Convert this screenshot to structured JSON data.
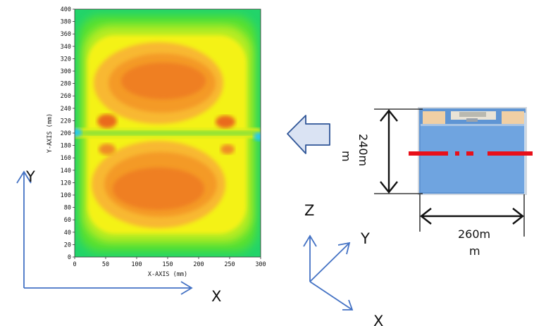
{
  "heatmap": {
    "x_axis_label": "X-AXIS (mm)",
    "y_axis_label": "Y-AXIS (mm)",
    "x_ticks": [
      "0",
      "50",
      "100",
      "150",
      "200",
      "250",
      "300"
    ],
    "y_ticks": [
      "0",
      "20",
      "40",
      "60",
      "80",
      "100",
      "120",
      "140",
      "160",
      "180",
      "200",
      "220",
      "240",
      "260",
      "280",
      "300",
      "320",
      "340",
      "360",
      "380",
      "400"
    ]
  },
  "chart_data": {
    "type": "heatmap",
    "xlabel": "X-AXIS (mm)",
    "ylabel": "Y-AXIS (mm)",
    "xlim": [
      0,
      300
    ],
    "ylim": [
      0,
      400
    ]
  },
  "axes_left": {
    "y": "Y",
    "x": "X"
  },
  "axes_3d": {
    "z": "Z",
    "y": "Y",
    "x": "X"
  },
  "panel": {
    "height_dim": "240m",
    "height_dim_2": "m",
    "width_dim": "260m",
    "width_dim_2": "m"
  },
  "colors": {
    "arrow_blue": "#4472c4",
    "arrow_fill": "#dae3f3",
    "red_line": "#e8101a",
    "panel_blue": "#6fa4e0"
  }
}
